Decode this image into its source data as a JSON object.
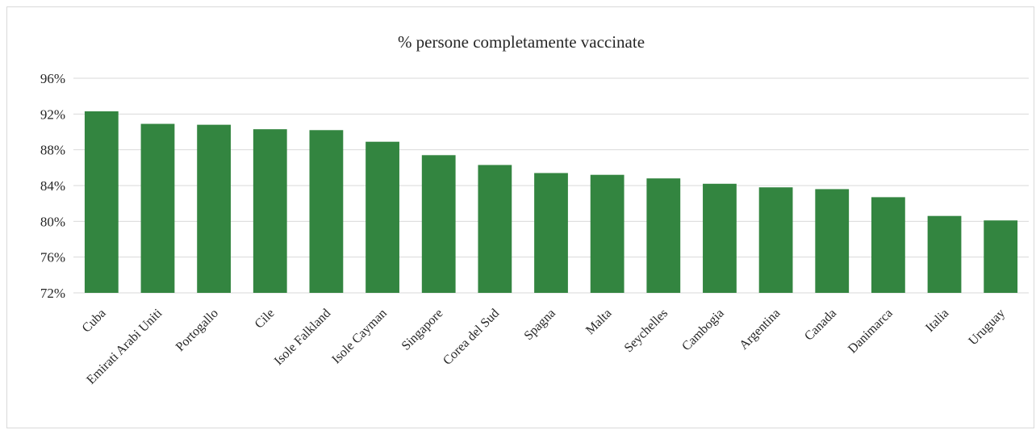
{
  "chart_data": {
    "type": "bar",
    "title": "% persone completamente vaccinate",
    "xlabel": "",
    "ylabel": "",
    "categories": [
      "Cuba",
      "Emirati Arabi Uniti",
      "Portogallo",
      "Cile",
      "Isole Falkland",
      "Isole Cayman",
      "Singapore",
      "Corea del Sud",
      "Spagna",
      "Malta",
      "Seychelles",
      "Cambogia",
      "Argentina",
      "Canada",
      "Danimarca",
      "Italia",
      "Uruguay"
    ],
    "values": [
      92.3,
      90.9,
      90.8,
      90.3,
      90.2,
      88.9,
      87.4,
      86.3,
      85.4,
      85.2,
      84.8,
      84.2,
      83.8,
      83.6,
      82.7,
      80.6,
      80.1
    ],
    "ylim": [
      72,
      96
    ],
    "yticks": [
      "72%",
      "76%",
      "80%",
      "84%",
      "88%",
      "92%",
      "96%"
    ],
    "bar_color": "#338540",
    "grid": true,
    "legend": "none"
  }
}
